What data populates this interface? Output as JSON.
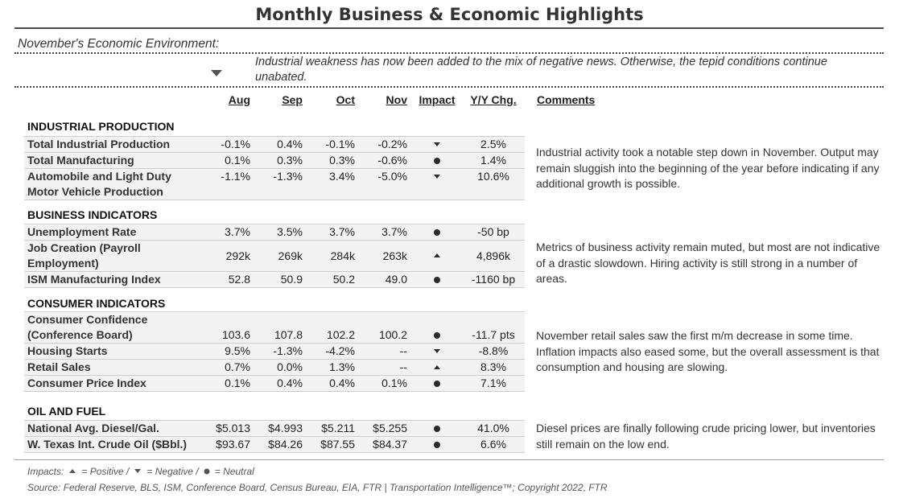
{
  "title": "Monthly Business & Economic Highlights",
  "environment": {
    "heading": "November's Economic Environment:",
    "summary": "Industrial weakness has now been added to the mix of negative news. Otherwise, the tepid conditions continue unabated."
  },
  "columns": {
    "aug": "Aug",
    "sep": "Sep",
    "oct": "Oct",
    "nov": "Nov",
    "impact": "Impact",
    "yoy": "Y/Y Chg.",
    "comments": "Comments"
  },
  "sections": [
    {
      "title": "INDUSTRIAL PRODUCTION",
      "comment": "Industrial activity took a notable step down in November. Output may remain sluggish into the beginning of the year before indicating if any additional growth is possible.",
      "rows": [
        {
          "label": "Total Industrial Production",
          "aug": "-0.1%",
          "sep": "0.4%",
          "oct": "-0.1%",
          "nov": "-0.2%",
          "impact": "negative",
          "yoy": "2.5%"
        },
        {
          "label": "Total Manufacturing",
          "aug": "0.1%",
          "sep": "0.3%",
          "oct": "0.3%",
          "nov": "-0.6%",
          "impact": "neutral",
          "yoy": "1.4%"
        },
        {
          "label": "Automobile and Light Duty Motor Vehicle Production",
          "aug": "-1.1%",
          "sep": "-1.3%",
          "oct": "3.4%",
          "nov": "-5.0%",
          "impact": "negative",
          "yoy": "10.6%"
        }
      ]
    },
    {
      "title": "BUSINESS INDICATORS",
      "comment": "Metrics of business activity remain muted, but most are not indicative of a drastic slowdown. Hiring activity is still strong in a number of areas.",
      "rows": [
        {
          "label": "Unemployment Rate",
          "aug": "3.7%",
          "sep": "3.5%",
          "oct": "3.7%",
          "nov": "3.7%",
          "impact": "neutral",
          "yoy": "-50 bp"
        },
        {
          "label": "Job Creation (Payroll Employment)",
          "aug": "292k",
          "sep": "269k",
          "oct": "284k",
          "nov": "263k",
          "impact": "positive",
          "yoy": "4,896k"
        },
        {
          "label": "ISM Manufacturing Index",
          "aug": "52.8",
          "sep": "50.9",
          "oct": "50.2",
          "nov": "49.0",
          "impact": "neutral",
          "yoy": "-1160 bp"
        }
      ]
    },
    {
      "title": "CONSUMER INDICATORS",
      "comment": "November retail sales saw the first m/m decrease in some time. Inflation impacts also eased some, but the overall assessment is that consumption and housing are slowing.",
      "rows": [
        {
          "label": "Consumer Confidence (Conference Board)",
          "aug": "103.6",
          "sep": "107.8",
          "oct": "102.2",
          "nov": "100.2",
          "impact": "neutral",
          "yoy": "-11.7 pts"
        },
        {
          "label": "Housing Starts",
          "aug": "9.5%",
          "sep": "-1.3%",
          "oct": "-4.2%",
          "nov": "--",
          "impact": "negative",
          "yoy": "-8.8%"
        },
        {
          "label": "Retail Sales",
          "aug": "0.7%",
          "sep": "0.0%",
          "oct": "1.3%",
          "nov": "--",
          "impact": "positive",
          "yoy": "8.3%"
        },
        {
          "label": "Consumer Price Index",
          "aug": "0.1%",
          "sep": "0.4%",
          "oct": "0.4%",
          "nov": "0.1%",
          "impact": "neutral",
          "yoy": "7.1%"
        }
      ]
    },
    {
      "title": "OIL AND FUEL",
      "comment": "Diesel prices are finally following crude pricing lower, but inventories still remain on the low end.",
      "rows": [
        {
          "label": "National Avg. Diesel/Gal.",
          "aug": "$5.013",
          "sep": "$4.993",
          "oct": "$5.211",
          "nov": "$5.255",
          "impact": "neutral",
          "yoy": "41.0%"
        },
        {
          "label": "W. Texas Int. Crude Oil ($Bbl.)",
          "aug": "$93.67",
          "sep": "$84.26",
          "oct": "$87.55",
          "nov": "$84.37",
          "impact": "neutral",
          "yoy": "6.6%"
        }
      ]
    }
  ],
  "legend": {
    "prefix": "Impacts:",
    "positive": "= Positive /",
    "negative": "= Negative /",
    "neutral": "= Neutral"
  },
  "source": "Source: Federal Reserve, BLS, ISM, Conference Board, Census Bureau, EIA, FTR | Transportation Intelligence™; Copyright 2022, FTR",
  "colors": {
    "text": "#222222",
    "row_shade": "#f2f2f2",
    "rule": "#4a4a4a"
  }
}
